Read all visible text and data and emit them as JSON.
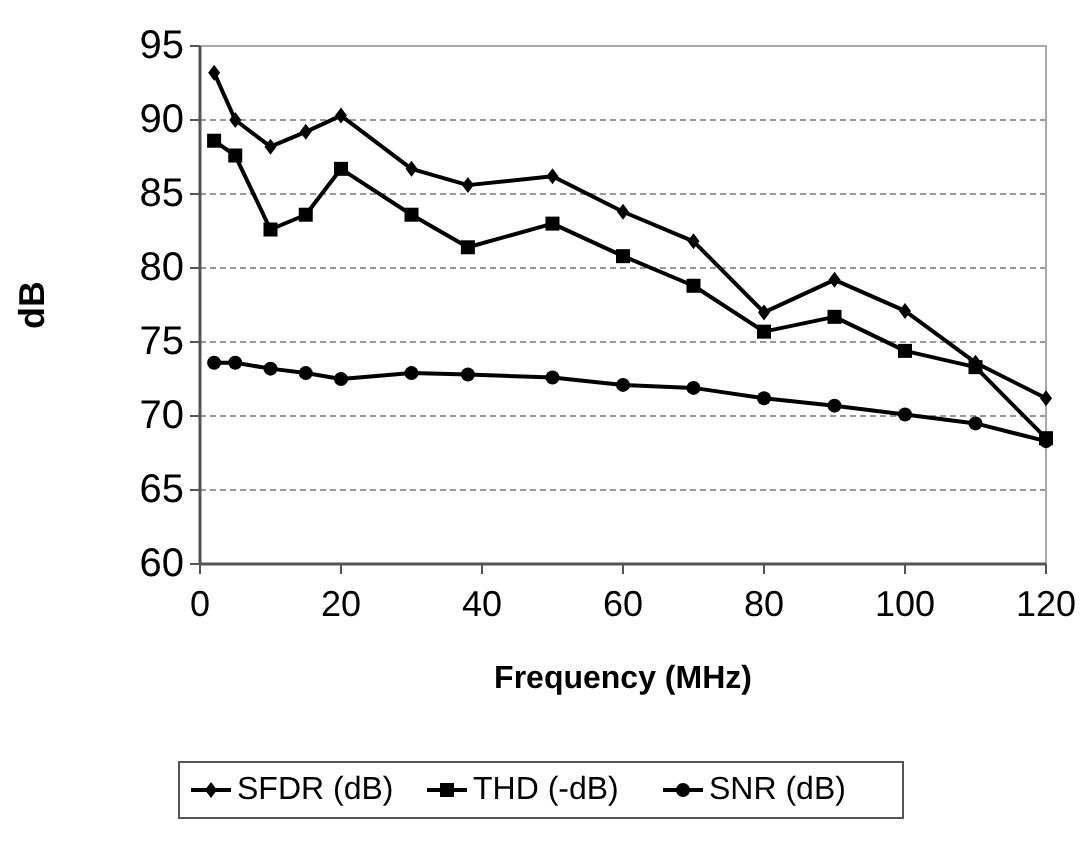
{
  "chart_data": {
    "type": "line",
    "xlabel": "Frequency (MHz)",
    "ylabel": "dB",
    "x": [
      2,
      5,
      10,
      15,
      20,
      30,
      38,
      50,
      60,
      70,
      80,
      90,
      100,
      110,
      120
    ],
    "series": [
      {
        "name": "SFDR (dB)",
        "color": "#000000",
        "marker": "diamond",
        "values": [
          93.2,
          90,
          88.2,
          89.2,
          90.3,
          86.7,
          85.6,
          86.2,
          83.8,
          81.8,
          77,
          79.2,
          77.1,
          73.6,
          71.2
        ]
      },
      {
        "name": "THD (-dB)",
        "color": "#000000",
        "marker": "square",
        "values": [
          88.6,
          87.6,
          82.6,
          83.6,
          86.7,
          83.6,
          81.4,
          83,
          80.8,
          78.8,
          75.7,
          76.7,
          74.4,
          73.3,
          68.5
        ]
      },
      {
        "name": "SNR (dB)",
        "color": "#000000",
        "marker": "circle",
        "values": [
          73.6,
          73.6,
          73.2,
          72.9,
          72.5,
          72.9,
          72.8,
          72.6,
          72.1,
          71.9,
          71.2,
          70.7,
          70.1,
          69.5,
          68.3
        ]
      }
    ],
    "xlim": [
      0,
      120
    ],
    "xticks": [
      0,
      20,
      40,
      60,
      80,
      100,
      120
    ],
    "ylim": [
      60,
      95
    ],
    "yticks": [
      60,
      65,
      70,
      75,
      80,
      85,
      90,
      95
    ],
    "grid": "y",
    "legend": "bottom",
    "line_style": "solid"
  }
}
